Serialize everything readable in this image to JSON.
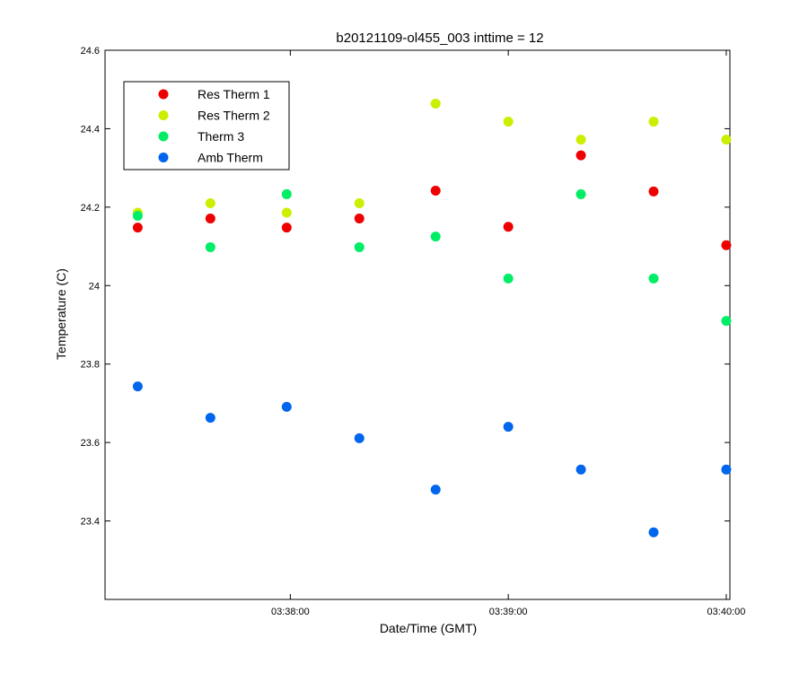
{
  "chart_data": {
    "type": "scatter",
    "title": "b20121109-ol455_003 inttime = 12",
    "xlabel": "Date/Time (GMT)",
    "ylabel": "Temperature (C)",
    "xlim": [
      "03:37:09",
      "03:40:01"
    ],
    "ylim": [
      23.2,
      24.6
    ],
    "x_ticks": [
      "03:38:00",
      "03:39:00",
      "03:40:00"
    ],
    "y_ticks": [
      "23.4",
      "23.6",
      "23.8",
      "24",
      "24.2",
      "24.4",
      "24.6"
    ],
    "grid": false,
    "legend_position": "top-left",
    "series": [
      {
        "name": "Res Therm 1",
        "color": "#ee0000",
        "x": [
          "03:37:18",
          "03:37:38",
          "03:37:59",
          "03:38:19",
          "03:38:40",
          "03:39:00",
          "03:39:20",
          "03:39:40",
          "03:40:00"
        ],
        "y": [
          24.148,
          24.171,
          24.148,
          24.171,
          24.242,
          24.15,
          24.332,
          24.24,
          24.103
        ]
      },
      {
        "name": "Res Therm 2",
        "color": "#ccee00",
        "x": [
          "03:37:18",
          "03:37:38",
          "03:37:59",
          "03:38:19",
          "03:38:40",
          "03:39:00",
          "03:39:20",
          "03:39:40",
          "03:40:00"
        ],
        "y": [
          24.186,
          24.21,
          24.186,
          24.21,
          24.464,
          24.418,
          24.372,
          24.418,
          24.372
        ]
      },
      {
        "name": "Therm 3",
        "color": "#00ee66",
        "x": [
          "03:37:18",
          "03:37:38",
          "03:37:59",
          "03:38:19",
          "03:38:40",
          "03:39:00",
          "03:39:20",
          "03:39:40",
          "03:40:00"
        ],
        "y": [
          24.178,
          24.098,
          24.233,
          24.098,
          24.125,
          24.018,
          24.233,
          24.018,
          23.91
        ]
      },
      {
        "name": "Amb Therm",
        "color": "#0066ee",
        "x": [
          "03:37:18",
          "03:37:38",
          "03:37:59",
          "03:38:19",
          "03:38:40",
          "03:39:00",
          "03:39:20",
          "03:39:40",
          "03:40:00"
        ],
        "y": [
          23.743,
          23.663,
          23.691,
          23.611,
          23.48,
          23.64,
          23.531,
          23.371,
          23.531
        ]
      }
    ]
  }
}
